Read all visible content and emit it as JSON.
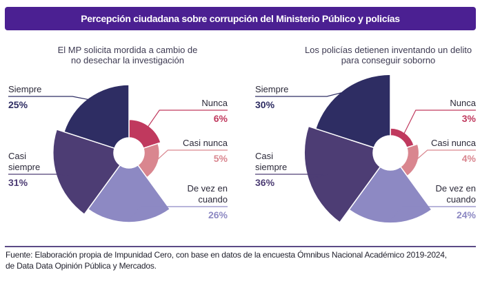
{
  "header": {
    "title": "Percepción ciudadana sobre corrupción del Ministerio Público y policías"
  },
  "colors": {
    "banner": "#4b2092",
    "Siempre": "#2e2d63",
    "Casi siempre": "#4d3d74",
    "De vez en cuando": "#8d89c3",
    "Casi nunca": "#d9868f",
    "Nunca": "#c0395e"
  },
  "chart_data": [
    {
      "type": "pie",
      "subtype": "polar-area",
      "title": "El MP solicita mordida a cambio de no desechar la investigación",
      "title_lines": [
        "El MP solicita mordida a cambio de",
        "no desechar la investigación"
      ],
      "categories": [
        "Nunca",
        "Casi nunca",
        "De vez en cuando",
        "Casi siempre",
        "Siempre"
      ],
      "labels": [
        [
          "Nunca"
        ],
        [
          "Casi nunca"
        ],
        [
          "De vez en",
          "cuando"
        ],
        [
          "Casi",
          "siempre"
        ],
        [
          "Siempre"
        ]
      ],
      "values": [
        6,
        5,
        26,
        31,
        25
      ],
      "value_labels": [
        "6%",
        "5%",
        "26%",
        "31%",
        "25%"
      ],
      "unit": "%"
    },
    {
      "type": "pie",
      "subtype": "polar-area",
      "title": "Los policías detienen inventando un delito para conseguir soborno",
      "title_lines": [
        "Los policías detienen inventando un delito",
        "para conseguir soborno"
      ],
      "categories": [
        "Nunca",
        "Casi nunca",
        "De vez en cuando",
        "Casi siempre",
        "Siempre"
      ],
      "labels": [
        [
          "Nunca"
        ],
        [
          "Casi nunca"
        ],
        [
          "De vez en",
          "cuando"
        ],
        [
          "Casi",
          "siempre"
        ],
        [
          "Siempre"
        ]
      ],
      "values": [
        3,
        4,
        24,
        36,
        30
      ],
      "value_labels": [
        "3%",
        "4%",
        "24%",
        "36%",
        "30%"
      ],
      "unit": "%"
    }
  ],
  "footer": {
    "source_line1": "Fuente: Elaboración propia de Impunidad Cero, con base en datos de la encuesta Ómnibus Nacional Académico 2019-2024,",
    "source_line2": "de Data Data Opinión Pública y Mercados."
  }
}
